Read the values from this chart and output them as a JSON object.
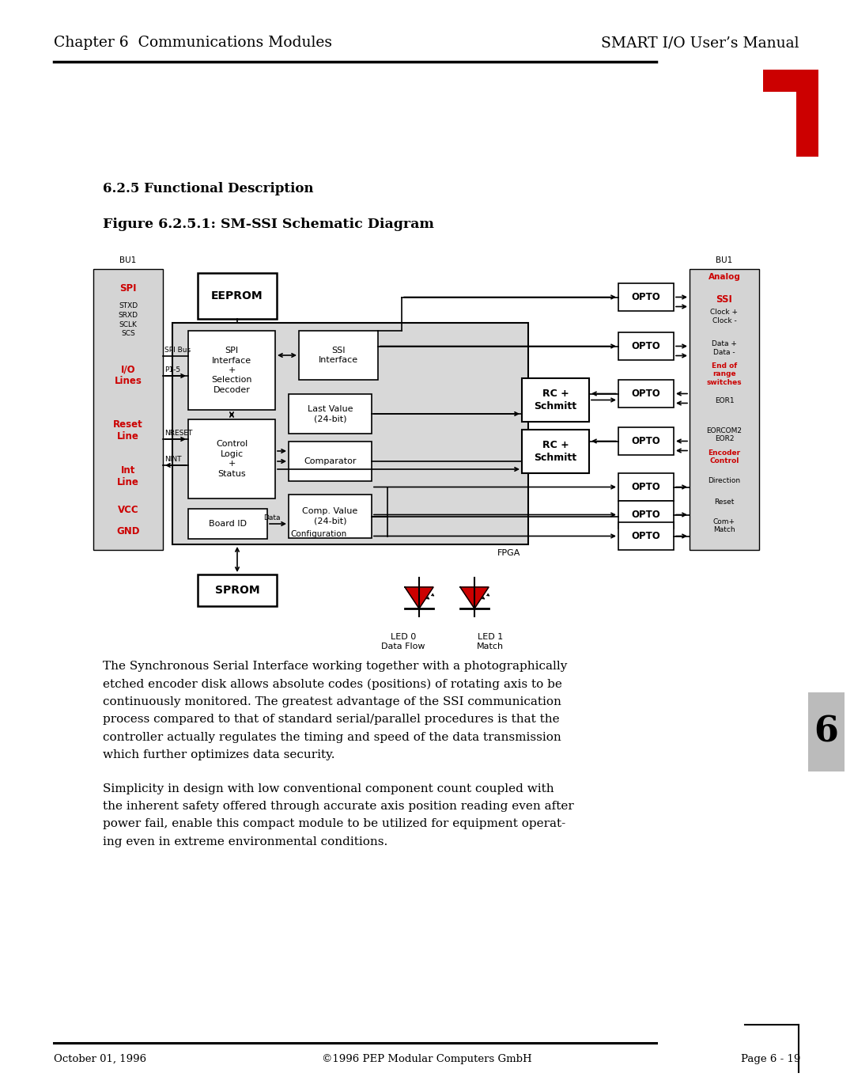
{
  "page_title_left": "Chapter 6  Communications Modules",
  "page_title_right": "SMART I/O User’s Manual",
  "section_title": "6.2.5 Functional Description",
  "figure_title": "Figure 6.2.5.1: SM-SSI Schematic Diagram",
  "footer_left": "October 01, 1996",
  "footer_center": "©1996 PEP Modular Computers GmbH",
  "footer_right": "Page 6 - 19",
  "page_number": "6",
  "bg_color": "#ffffff",
  "text_color": "#000000",
  "red_color": "#cc0000",
  "box_gray": "#d4d4d4",
  "paragraph1": "The Synchronous Serial Interface working together with a photographically\netched encoder disk allows absolute codes (positions) of rotating axis to be\ncontinuously monitored. The greatest advantage of the SSI communication\nprocess compared to that of standard serial/parallel procedures is that the\ncontroller actually regulates the timing and speed of the data transmission\nwhich further optimizes data security.",
  "paragraph2": "Simplicity in design with low conventional component count coupled with\nthe inherent safety offered through accurate axis position reading even after\npower fail, enable this compact module to be utilized for equipment operat-\ning even in extreme environmental conditions."
}
